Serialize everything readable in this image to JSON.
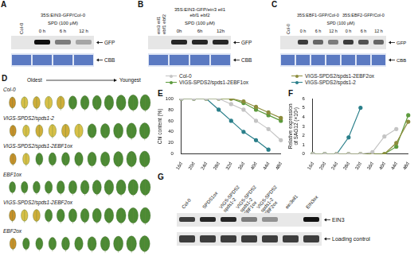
{
  "chart_data": [
    {
      "type": "line",
      "title": "E",
      "y_label": "Chl content (%)",
      "categories": [
        "16d",
        "20d",
        "24d",
        "28d",
        "32d",
        "36d",
        "40d",
        "44d",
        "48d"
      ],
      "series": [
        {
          "name": "Col-0",
          "color": "#c4c4c4",
          "values": [
            100,
            100,
            100,
            100,
            90,
            80,
            60,
            45,
            25
          ]
        },
        {
          "name": "VIGS-SPDS2/spds1-2EBF2ox",
          "color": "#8c8c3c",
          "values": [
            100,
            100,
            100,
            100,
            100,
            95,
            85,
            75,
            65
          ]
        },
        {
          "name": "VIGS-SPDS2/spds1-2EBF1ox",
          "color": "#5c9a3c",
          "values": [
            100,
            100,
            100,
            100,
            100,
            92,
            80,
            70,
            60
          ]
        },
        {
          "name": "VIGS-SPDS2/spds1-2",
          "color": "#2a7f8a",
          "values": [
            100,
            100,
            100,
            80,
            60,
            40,
            25,
            8,
            null
          ]
        }
      ],
      "ylim": [
        0,
        100
      ],
      "yticks": [
        0,
        20,
        40,
        60,
        80,
        100
      ],
      "grid": false,
      "legend": "top",
      "marker": "circle"
    },
    {
      "type": "line",
      "title": "F",
      "y_label": "Relative expression of SAG12 (×10³)",
      "categories": [
        "16d",
        "20d",
        "24d",
        "28d",
        "32d",
        "36d",
        "40d",
        "44d",
        "48d"
      ],
      "series": [
        {
          "name": "Col-0",
          "color": "#c4c4c4",
          "values": [
            0,
            0,
            0,
            0,
            0,
            0.2,
            1.9,
            2.7,
            null
          ]
        },
        {
          "name": "VIGS-SPDS2/spds1-2EBF2ox",
          "color": "#8c8c3c",
          "values": [
            0,
            0,
            0,
            0,
            0,
            0,
            0,
            1.2,
            3.5
          ]
        },
        {
          "name": "VIGS-SPDS2/spds1-2EBF1ox",
          "color": "#5c9a3c",
          "values": [
            0,
            0,
            0,
            0,
            0,
            0,
            0,
            0.8,
            4.2
          ]
        },
        {
          "name": "VIGS-SPDS2/spds1-2",
          "color": "#2a7f8a",
          "values": [
            0,
            0,
            0,
            1.8,
            5,
            null,
            null,
            null,
            null
          ]
        }
      ],
      "ylim": [
        0,
        6
      ],
      "yticks": [
        0,
        1,
        2,
        3,
        4,
        5,
        6
      ],
      "grid": false,
      "marker": "circle"
    }
  ],
  "blots": [
    {
      "panel": "A",
      "lane_label": "Col-0",
      "treatment": "SPD (100 μM)",
      "groups": [
        {
          "label": "35S:EIN3-GFP/Col-0",
          "times": [
            "0 h",
            "6 h",
            "12 h"
          ]
        }
      ],
      "rows": [
        {
          "label": "GFP",
          "bands": [
            0,
            1,
            0.5,
            0.3
          ]
        },
        {
          "label": "CBB",
          "bands": [
            1,
            1,
            1,
            1
          ]
        }
      ]
    },
    {
      "panel": "B",
      "lane_label": "ein3 eil1 ebf1 ebf2",
      "treatment": "SPD (100 μM)",
      "groups": [
        {
          "label": "35S:EIN3-GFP/ein3 eil1 ebf1 ebf2",
          "times": [
            "0h",
            "6h",
            "12h"
          ]
        }
      ],
      "rows": [
        {
          "label": "GFP",
          "bands": [
            0,
            0.9,
            0.9,
            0.9
          ]
        },
        {
          "label": "CBB",
          "bands": [
            1,
            1,
            1,
            1
          ]
        }
      ]
    },
    {
      "panel": "C",
      "lane_label": "Col-0",
      "treatment": "SPD (100 μM)",
      "groups": [
        {
          "label": "35S:EBF1-GFP/Col-0",
          "times": [
            "0 h",
            "6 h",
            "12 h"
          ]
        },
        {
          "label": "35S:EBF2-GFP/Col-0",
          "times": [
            "0 h",
            "6 h",
            "12 h"
          ]
        }
      ],
      "rows": [
        {
          "label": "GFP",
          "bands": [
            0,
            0.8,
            0.6,
            0.5,
            0.8,
            0.7,
            0.6
          ]
        },
        {
          "label": "CBB",
          "bands": [
            1,
            1,
            1,
            1,
            1,
            1,
            1
          ]
        }
      ]
    }
  ],
  "leaves": {
    "panel": "D",
    "from": "Oldest",
    "to": "Youngest",
    "rows": [
      {
        "label": "Col-0",
        "leaves": 12,
        "senescent": 5
      },
      {
        "label": "VIGS-SPDS2/spds1-2",
        "leaves": 11,
        "senescent": 6
      },
      {
        "label": "VIGS-SPDS2/spds1-2EBF1ox",
        "leaves": 11,
        "senescent": 2
      },
      {
        "label": "EBF1ox",
        "leaves": 12,
        "senescent": 0
      },
      {
        "label": "VIGS-SPDS2/spds1-2EBF2ox",
        "leaves": 12,
        "senescent": 3
      },
      {
        "label": "EBF2ox",
        "leaves": 11,
        "senescent": 1
      }
    ]
  },
  "western": {
    "panel": "G",
    "lanes": [
      "Col-0",
      "SPDS1ox",
      "VIGS-SPDS2 spds1-2",
      "VIGS-SPDS2 spds1-2 EBF1ox",
      "VIGS-SPDS2 spds1-2 EBF2ox",
      "ein3eil1",
      "EIN3ox"
    ],
    "rows": [
      {
        "label": "EIN3",
        "bands": [
          0.8,
          0.9,
          0.9,
          0.5,
          0.4,
          0,
          1
        ]
      },
      {
        "label": "Loading control",
        "bands": [
          1,
          1,
          1,
          1,
          1,
          1,
          1
        ]
      }
    ]
  }
}
